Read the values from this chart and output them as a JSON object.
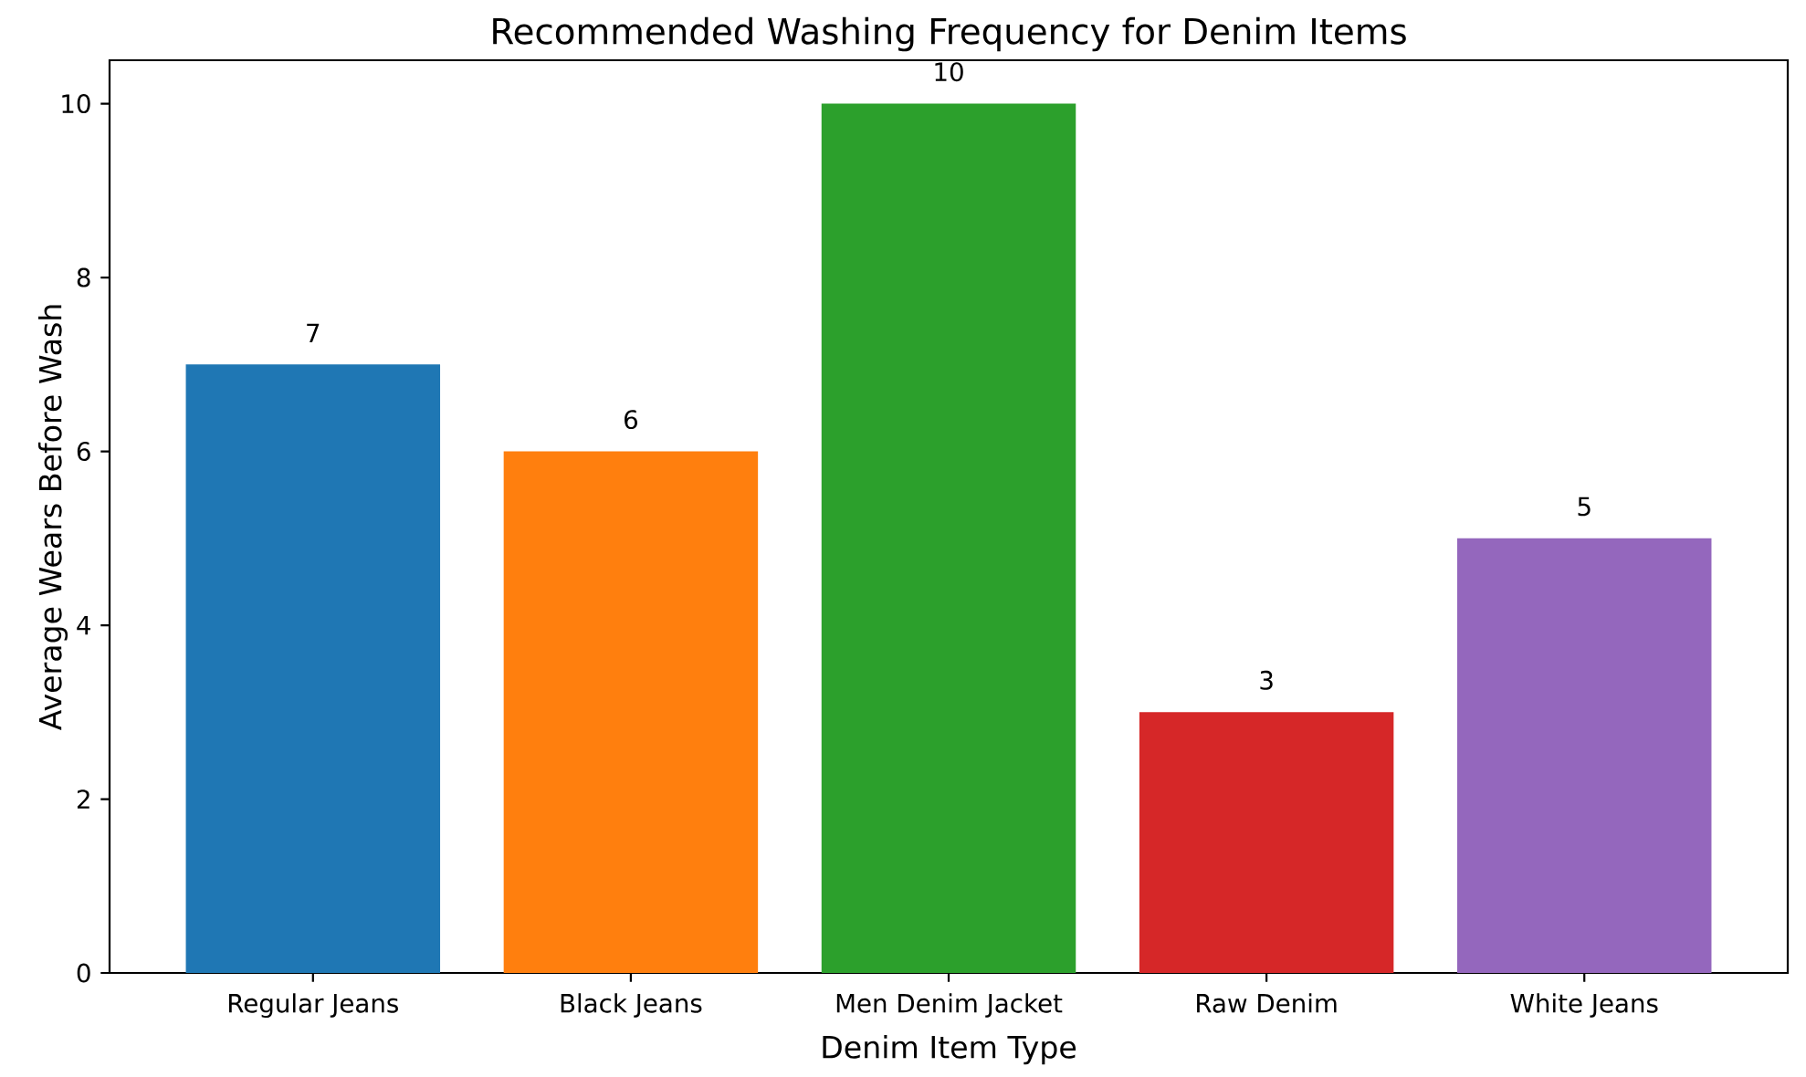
{
  "chart_data": {
    "type": "bar",
    "title": "Recommended Washing Frequency for Denim Items",
    "xlabel": "Denim Item Type",
    "ylabel": "Average Wears Before Wash",
    "categories": [
      "Regular Jeans",
      "Black Jeans",
      "Men Denim Jacket",
      "Raw Denim",
      "White Jeans"
    ],
    "values": [
      7,
      6,
      10,
      3,
      5
    ],
    "colors": [
      "#1f77b4",
      "#ff7f0e",
      "#2ca02c",
      "#d62728",
      "#9467bd"
    ],
    "ylim": [
      0,
      10.5
    ],
    "yticks": [
      0,
      2,
      4,
      6,
      8,
      10
    ],
    "data_labels": true
  }
}
